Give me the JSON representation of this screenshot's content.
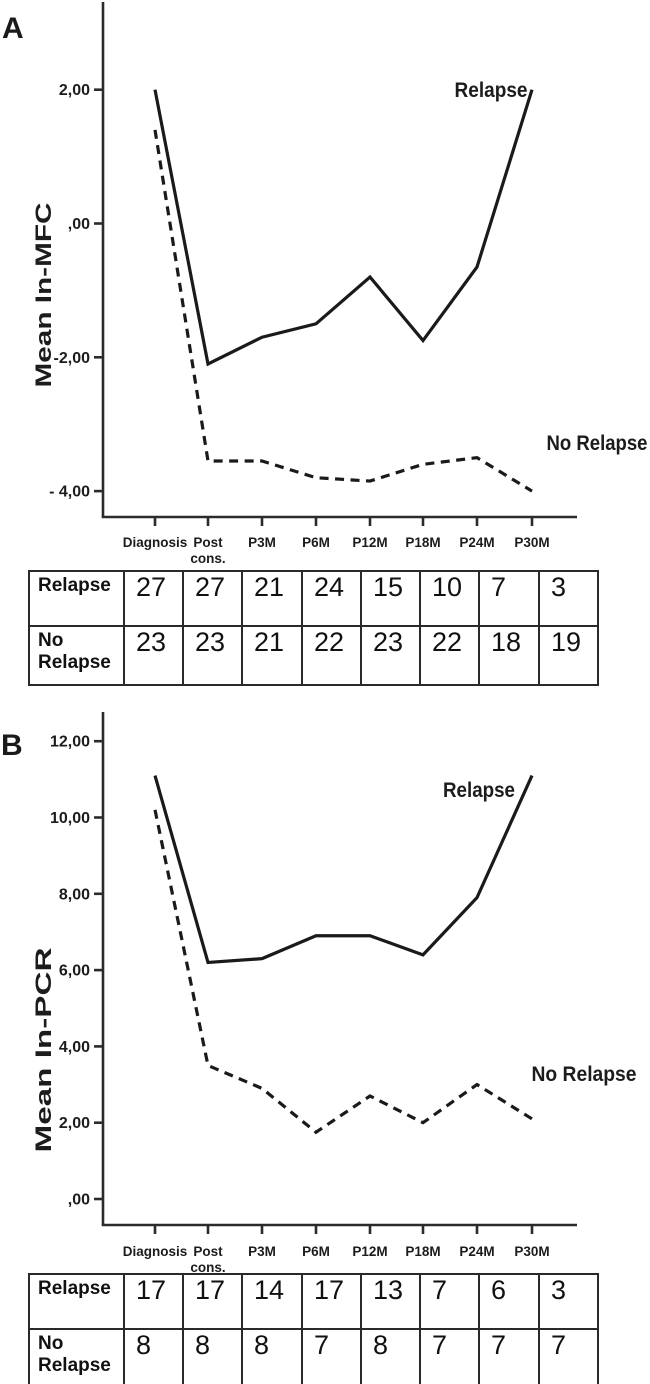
{
  "figure": {
    "panels": [
      {
        "letter": "A"
      },
      {
        "letter": "B"
      }
    ]
  },
  "chart_data": [
    {
      "panel": "A",
      "type": "line",
      "title": "",
      "xlabel": "",
      "ylabel": "Mean In-MFC",
      "legend": "inline-labels",
      "grid": false,
      "line_color": "#1a1a1a",
      "categories": [
        "Diagnosis",
        "Post\ncons.",
        "P3M",
        "P6M",
        "P12M",
        "P18M",
        "P24M",
        "P30M"
      ],
      "y_ticks": [
        {
          "value": 2,
          "label": "2,00"
        },
        {
          "value": 0,
          "label": ",00"
        },
        {
          "value": -2,
          "label": "-2,00"
        },
        {
          "value": -4,
          "label": "- 4,00"
        }
      ],
      "ylim": [
        -4.4,
        3.3
      ],
      "series": [
        {
          "name": "Relapse",
          "line_style": "solid",
          "values": [
            2.0,
            -2.1,
            -1.7,
            -1.5,
            -0.8,
            -1.75,
            -0.65,
            2.0
          ]
        },
        {
          "name": "No Relapse",
          "line_style": "dashed",
          "values": [
            1.4,
            -3.55,
            -3.55,
            -3.8,
            -3.85,
            -3.6,
            -3.5,
            -4.0
          ]
        }
      ],
      "counts_table": {
        "rows": [
          {
            "label": "Relapse",
            "values": [
              27,
              27,
              21,
              24,
              15,
              10,
              7,
              3
            ]
          },
          {
            "label": "No Relapse",
            "values": [
              23,
              23,
              21,
              22,
              23,
              22,
              18,
              19
            ]
          }
        ]
      }
    },
    {
      "panel": "B",
      "type": "line",
      "title": "",
      "xlabel": "",
      "ylabel": "Mean In-PCR",
      "legend": "inline-labels",
      "grid": false,
      "line_color": "#1a1a1a",
      "categories": [
        "Diagnosis",
        "Post\ncons.",
        "P3M",
        "P6M",
        "P12M",
        "P18M",
        "P24M",
        "P30M"
      ],
      "y_ticks": [
        {
          "value": 12,
          "label": "12,00"
        },
        {
          "value": 10,
          "label": "10,00"
        },
        {
          "value": 8,
          "label": "8,00"
        },
        {
          "value": 6,
          "label": "6,00"
        },
        {
          "value": 4,
          "label": "4,00"
        },
        {
          "value": 2,
          "label": "2,00"
        },
        {
          "value": 0,
          "label": ",00"
        }
      ],
      "ylim": [
        -0.7,
        12.8
      ],
      "series": [
        {
          "name": "Relapse",
          "line_style": "solid",
          "values": [
            11.1,
            6.2,
            6.3,
            6.9,
            6.9,
            6.4,
            7.9,
            11.1
          ]
        },
        {
          "name": "No Relapse",
          "line_style": "dashed",
          "values": [
            10.2,
            3.5,
            2.9,
            1.75,
            2.7,
            2.0,
            3.0,
            2.1
          ]
        }
      ],
      "counts_table": {
        "rows": [
          {
            "label": "Relapse",
            "values": [
              17,
              17,
              14,
              17,
              13,
              7,
              6,
              3
            ]
          },
          {
            "label": "No Relapse",
            "values": [
              8,
              8,
              8,
              7,
              8,
              7,
              7,
              7
            ]
          }
        ]
      }
    }
  ]
}
